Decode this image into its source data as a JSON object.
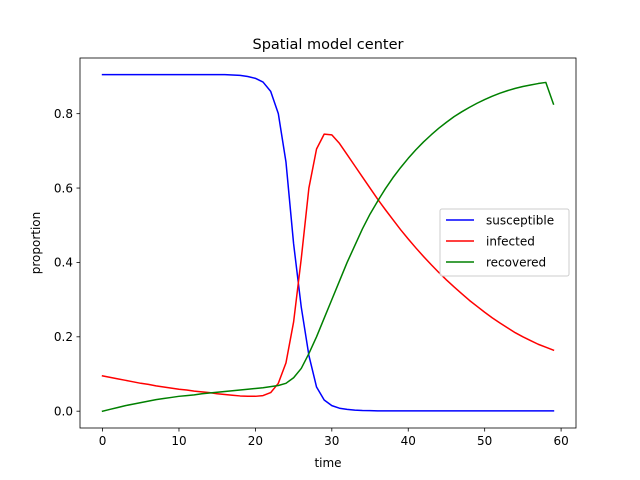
{
  "chart_data": {
    "type": "line",
    "title": "Spatial model center",
    "xlabel": "time",
    "ylabel": "proportion",
    "xlim": [
      -2.95,
      61.95
    ],
    "ylim": [
      -0.0452,
      0.9497
    ],
    "xticks": [
      0,
      10,
      20,
      30,
      40,
      50,
      60
    ],
    "yticks": [
      0.0,
      0.2,
      0.4,
      0.6,
      0.8
    ],
    "xtick_labels": [
      "0",
      "10",
      "20",
      "30",
      "40",
      "50",
      "60"
    ],
    "ytick_labels": [
      "0.0",
      "0.2",
      "0.4",
      "0.6",
      "0.8"
    ],
    "grid": false,
    "legend_position": "center-right",
    "x": [
      0,
      1,
      2,
      3,
      4,
      5,
      6,
      7,
      8,
      9,
      10,
      11,
      12,
      13,
      14,
      15,
      16,
      17,
      18,
      19,
      20,
      21,
      22,
      23,
      24,
      25,
      26,
      27,
      28,
      29,
      30,
      31,
      32,
      33,
      34,
      35,
      36,
      37,
      38,
      39,
      40,
      41,
      42,
      43,
      44,
      45,
      46,
      47,
      48,
      49,
      50,
      51,
      52,
      53,
      54,
      55,
      56,
      57,
      58,
      59
    ],
    "series": [
      {
        "name": "susceptible",
        "color": "#0000ff",
        "values": [
          0.905,
          0.905,
          0.905,
          0.905,
          0.905,
          0.905,
          0.905,
          0.905,
          0.905,
          0.905,
          0.905,
          0.905,
          0.905,
          0.905,
          0.905,
          0.905,
          0.905,
          0.904,
          0.903,
          0.9,
          0.895,
          0.885,
          0.86,
          0.8,
          0.67,
          0.45,
          0.28,
          0.15,
          0.065,
          0.03,
          0.015,
          0.008,
          0.005,
          0.003,
          0.002,
          0.0015,
          0.001,
          0.001,
          0.001,
          0.001,
          0.001,
          0.001,
          0.001,
          0.001,
          0.001,
          0.001,
          0.001,
          0.001,
          0.001,
          0.001,
          0.001,
          0.001,
          0.001,
          0.001,
          0.001,
          0.001,
          0.001,
          0.001,
          0.001,
          0.001
        ]
      },
      {
        "name": "infected",
        "color": "#ff0000",
        "values": [
          0.095,
          0.091,
          0.087,
          0.083,
          0.079,
          0.075,
          0.072,
          0.068,
          0.065,
          0.062,
          0.059,
          0.057,
          0.054,
          0.052,
          0.05,
          0.047,
          0.045,
          0.043,
          0.041,
          0.04,
          0.04,
          0.042,
          0.05,
          0.075,
          0.13,
          0.24,
          0.41,
          0.6,
          0.705,
          0.745,
          0.743,
          0.72,
          0.69,
          0.66,
          0.63,
          0.6,
          0.57,
          0.542,
          0.515,
          0.488,
          0.463,
          0.439,
          0.416,
          0.394,
          0.373,
          0.353,
          0.334,
          0.316,
          0.298,
          0.282,
          0.266,
          0.251,
          0.237,
          0.224,
          0.211,
          0.2,
          0.19,
          0.18,
          0.172,
          0.164
        ]
      },
      {
        "name": "recovered",
        "color": "#008000",
        "values": [
          0.0,
          0.005,
          0.01,
          0.015,
          0.019,
          0.023,
          0.027,
          0.031,
          0.034,
          0.037,
          0.04,
          0.042,
          0.044,
          0.047,
          0.049,
          0.051,
          0.053,
          0.055,
          0.057,
          0.059,
          0.061,
          0.063,
          0.066,
          0.069,
          0.075,
          0.09,
          0.115,
          0.155,
          0.2,
          0.25,
          0.3,
          0.35,
          0.4,
          0.445,
          0.49,
          0.53,
          0.565,
          0.598,
          0.628,
          0.655,
          0.68,
          0.703,
          0.724,
          0.743,
          0.761,
          0.777,
          0.792,
          0.805,
          0.817,
          0.828,
          0.838,
          0.847,
          0.855,
          0.862,
          0.868,
          0.873,
          0.877,
          0.881,
          0.884,
          0.826
        ]
      }
    ]
  }
}
